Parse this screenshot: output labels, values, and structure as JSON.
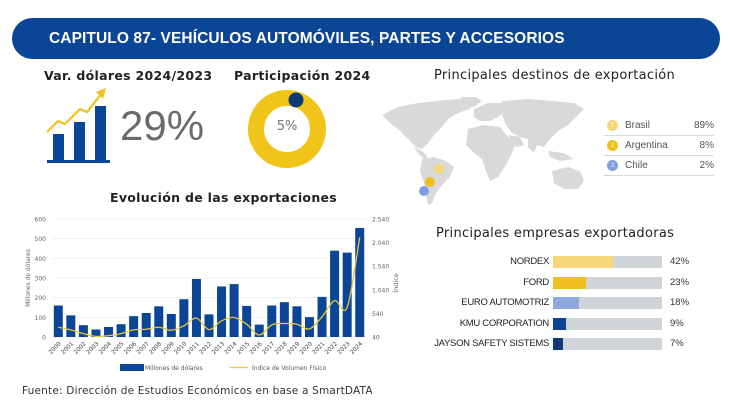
{
  "header": {
    "title": "CAPITULO 87- VEHÍCULOS AUTOMÓVILES, PARTES Y ACCESORIOS"
  },
  "variation": {
    "title": "Var. dólares 2024/2023",
    "value": "29%",
    "icon": "growth-chart-icon"
  },
  "participation": {
    "title": "Participación 2024",
    "value": "5%",
    "fraction": 0.05,
    "colors": {
      "ring": "#f0c419",
      "marker": "#0b3a75"
    }
  },
  "destinations": {
    "title": "Principales destinos de exportación",
    "items": [
      {
        "rank": "1",
        "name": "Brasil",
        "pct": "89%",
        "color": "#f5d77a"
      },
      {
        "rank": "2",
        "name": "Argentina",
        "pct": "8%",
        "color": "#f0c020"
      },
      {
        "rank": "3",
        "name": "Chile",
        "pct": "2%",
        "color": "#7f9ee0"
      }
    ]
  },
  "companies": {
    "title": "Principales empresas exportadoras",
    "items": [
      {
        "name": "NORDEX",
        "pct": "42%",
        "value": 42,
        "color": "#f5d77a"
      },
      {
        "name": "FORD",
        "pct": "23%",
        "value": 23,
        "color": "#f0c020"
      },
      {
        "name": "EURO AUTOMOTRIZ",
        "pct": "18%",
        "value": 18,
        "color": "#8fa8e0"
      },
      {
        "name": "KMU CORPORATION",
        "pct": "9%",
        "value": 9,
        "color": "#0b4595"
      },
      {
        "name": "JAYSON SAFETY SISTEMS",
        "pct": "7%",
        "value": 7,
        "color": "#0b3a75"
      }
    ]
  },
  "source": "Fuente: Dirección de Estudios Económicos en base a SmartDATA",
  "chart_data": {
    "type": "bar",
    "title": "Evolución de las exportaciones",
    "categories": [
      "2000",
      "2001",
      "2002",
      "2003",
      "2004",
      "2005",
      "2006",
      "2007",
      "2008",
      "2009",
      "2010",
      "2011",
      "2012",
      "2013",
      "2014",
      "2015",
      "2016",
      "2017",
      "2018",
      "2019",
      "2020",
      "2021",
      "2022",
      "2023",
      "2024"
    ],
    "series": [
      {
        "name": "Millones de dólares",
        "type": "bar",
        "axis": "left",
        "color": "#0b4595",
        "values": [
          160,
          110,
          60,
          38,
          51,
          65,
          106,
          122,
          156,
          117,
          192,
          295,
          115,
          257,
          269,
          158,
          63,
          160,
          177,
          156,
          101,
          204,
          439,
          429,
          554
        ]
      },
      {
        "name": "Índice de Volumen Físico",
        "type": "line",
        "axis": "right",
        "color": "#e8c53a",
        "values": [
          247,
          190,
          111,
          54,
          69,
          111,
          190,
          204,
          247,
          183,
          276,
          440,
          197,
          383,
          454,
          311,
          83,
          297,
          326,
          311,
          211,
          468,
          811,
          668,
          2153
        ]
      }
    ],
    "ylabel": "Millones de dólares",
    "ylabel_right": "Índice",
    "ylim": [
      0,
      600
    ],
    "yticks": [
      "0",
      "100",
      "200",
      "300",
      "400",
      "500",
      "600"
    ],
    "ylim_right": [
      40,
      2540
    ],
    "yticks_right": [
      "40",
      "540",
      "1.040",
      "1.540",
      "2.040",
      "2.540"
    ],
    "grid": true,
    "legend": "bottom"
  }
}
